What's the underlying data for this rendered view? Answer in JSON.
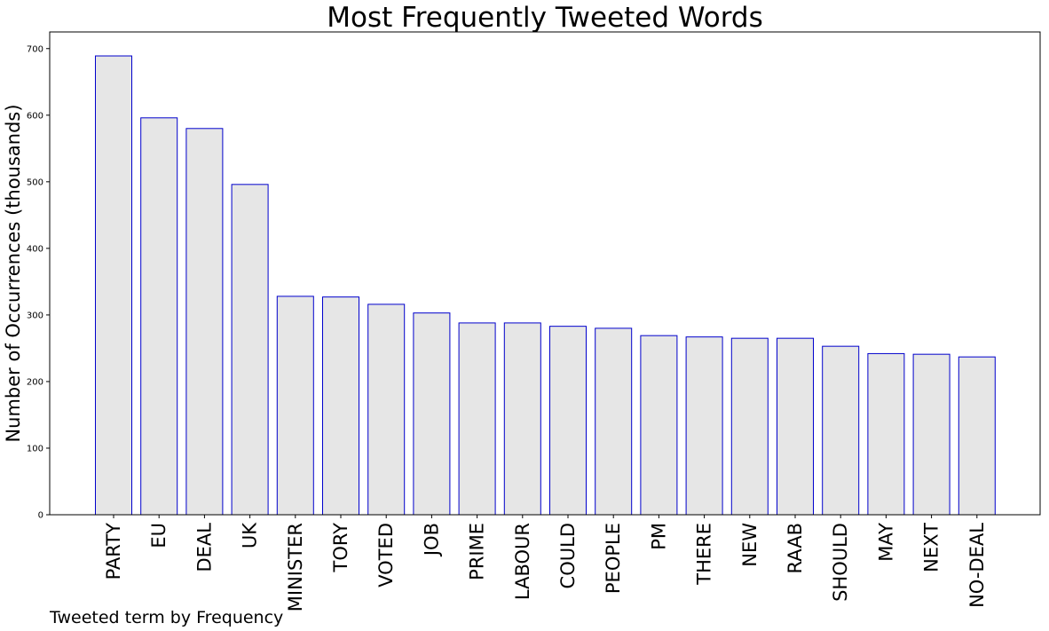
{
  "chart_data": {
    "type": "bar",
    "title": "Most Frequently Tweeted Words",
    "xlabel": "Tweeted term by Frequency",
    "ylabel": "Number of Occurrences (thousands)",
    "categories": [
      "PARTY",
      "EU",
      "DEAL",
      "UK",
      "MINISTER",
      "TORY",
      "VOTED",
      "JOB",
      "PRIME",
      "LABOUR",
      "COULD",
      "PEOPLE",
      "PM",
      "THERE",
      "NEW",
      "RAAB",
      "SHOULD",
      "MAY",
      "NEXT",
      "NO-DEAL"
    ],
    "values": [
      689,
      596,
      580,
      496,
      328,
      327,
      316,
      303,
      288,
      288,
      283,
      280,
      269,
      267,
      265,
      265,
      253,
      242,
      241,
      237
    ],
    "ylim": [
      0,
      725
    ],
    "yticks": [
      0,
      100,
      200,
      300,
      400,
      500,
      600,
      700
    ],
    "grid": false,
    "colors": {
      "bar_fill": "#e6e6e6",
      "bar_edge": "#0000cc",
      "axis": "#000000"
    }
  }
}
